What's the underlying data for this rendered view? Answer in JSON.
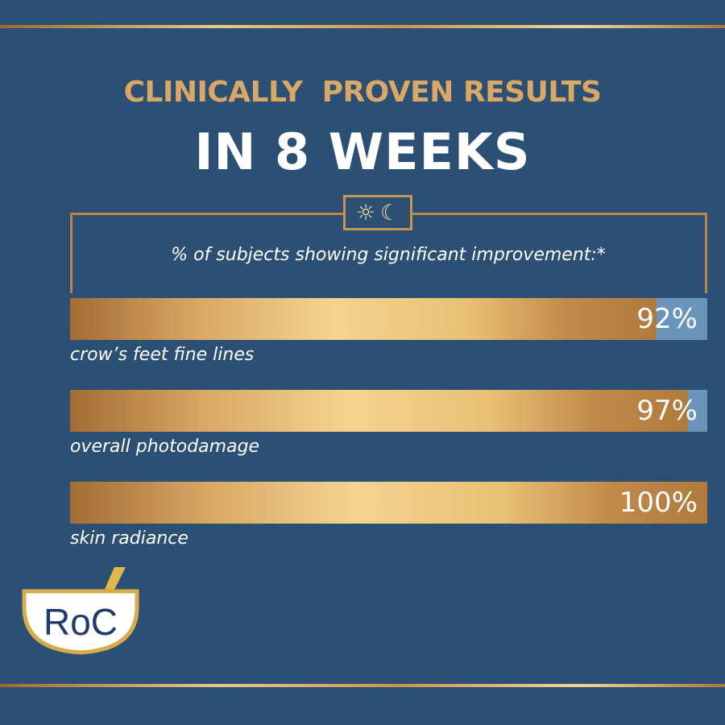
{
  "header": {
    "headline": "CLINICALLY  PROVEN RESULTS",
    "subheadline": "IN 8 WEEKS"
  },
  "badge": {
    "icons": [
      "sun-icon",
      "moon-icon"
    ],
    "sun_glyph": "☼",
    "moon_glyph": "☾"
  },
  "caption": "% of subjects showing significant improvement:*",
  "results": [
    {
      "value": 92,
      "value_label": "92%",
      "label": "crow’s feet fine lines"
    },
    {
      "value": 97,
      "value_label": "97%",
      "label": "overall photodamage"
    },
    {
      "value": 100,
      "value_label": "100%",
      "label": "skin radiance"
    }
  ],
  "logo": {
    "text": "RoC"
  },
  "colors": {
    "background": "#2c4f74",
    "gold": "#d9a866",
    "track": "#6b94bd",
    "logo_blue": "#1f3b6e"
  }
}
